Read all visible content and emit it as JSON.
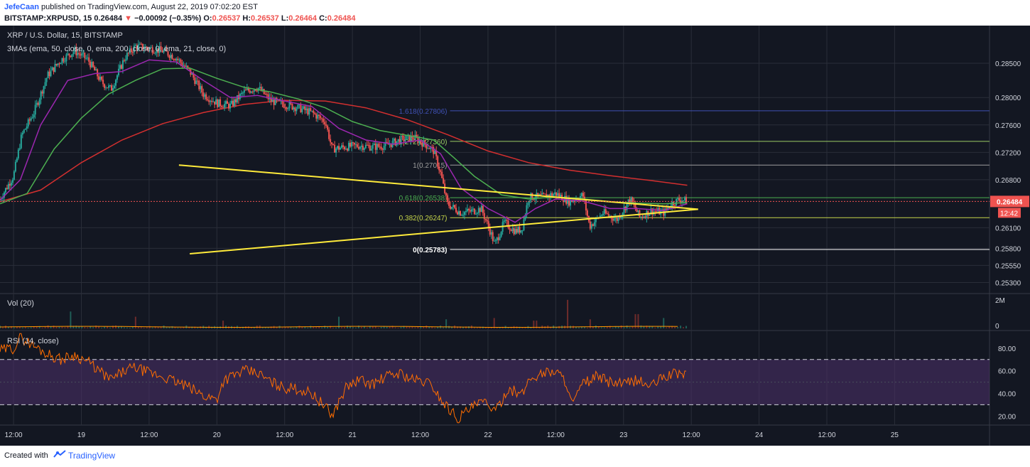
{
  "header": {
    "author": "JefeCaan",
    "published_text": "published on TradingView.com, August 22, 2019 07:02:20 EST",
    "symbol": "BITSTAMP:XRPUSD, 15",
    "last": "0.26484",
    "change": "−0.00092 (−0.35%)",
    "o_label": "O:",
    "o_value": "0.26537",
    "h_label": "H:",
    "h_value": "0.26537",
    "l_label": "L:",
    "l_value": "0.26464",
    "c_label": "C:",
    "c_value": "0.26484"
  },
  "footer": {
    "created_with": "Created with",
    "brand": "TradingView"
  },
  "chart_data": {
    "type": "candlestick",
    "title": "XRP / U.S. Dollar, 15, BITSTAMP",
    "indicator_label": "3MAs (ema, 50, close, 0, ema, 200, close, 0, ema, 21, close, 0)",
    "price_axis": {
      "ylim": [
        0.2515,
        0.2905
      ],
      "ticks": [
        "0.28500",
        "0.28000",
        "0.27600",
        "0.27200",
        "0.26800",
        "0.26100",
        "0.25800",
        "0.25550",
        "0.25300"
      ]
    },
    "current_price": "0.26484",
    "countdown": "12:42",
    "x_axis": {
      "xlim": [
        -0.1,
        7.2
      ],
      "ticks": [
        "12:00",
        "19",
        "12:00",
        "20",
        "12:00",
        "21",
        "12:00",
        "22",
        "12:00",
        "23",
        "12:00",
        "24",
        "12:00",
        "25"
      ]
    },
    "fib_levels": [
      {
        "label": "1.618(0.27806)",
        "value": 0.27806,
        "color": "#3f51b5"
      },
      {
        "label": "1.272(0.27360)",
        "value": 0.2736,
        "color": "#9ccc65"
      },
      {
        "label": "1(0.27015)",
        "value": 0.27015,
        "color": "#9e9e9e"
      },
      {
        "label": "0.618(0.26538)",
        "value": 0.26538,
        "color": "#4caf50"
      },
      {
        "label": "0.382(0.26247)",
        "value": 0.26247,
        "color": "#c6d64a"
      },
      {
        "label": "0(0.25783)",
        "value": 0.25783,
        "color": "#ffffff"
      }
    ],
    "triangle": {
      "color": "#ffeb3b",
      "upper": [
        [
          1.22,
          0.27015
        ],
        [
          5.05,
          0.2637
        ]
      ],
      "lower": [
        [
          1.3,
          0.2572
        ],
        [
          5.05,
          0.2637
        ]
      ]
    },
    "price_path": [
      [
        -0.1,
        0.2652
      ],
      [
        0.0,
        0.2686
      ],
      [
        0.06,
        0.2745
      ],
      [
        0.15,
        0.2778
      ],
      [
        0.25,
        0.2832
      ],
      [
        0.35,
        0.2855
      ],
      [
        0.45,
        0.2868
      ],
      [
        0.55,
        0.2855
      ],
      [
        0.65,
        0.2822
      ],
      [
        0.72,
        0.2812
      ],
      [
        0.82,
        0.2858
      ],
      [
        0.9,
        0.2875
      ],
      [
        1.0,
        0.2872
      ],
      [
        1.1,
        0.2868
      ],
      [
        1.2,
        0.2858
      ],
      [
        1.3,
        0.2838
      ],
      [
        1.4,
        0.2805
      ],
      [
        1.5,
        0.2792
      ],
      [
        1.6,
        0.2788
      ],
      [
        1.7,
        0.2808
      ],
      [
        1.8,
        0.2815
      ],
      [
        1.9,
        0.2795
      ],
      [
        2.0,
        0.279
      ],
      [
        2.1,
        0.2785
      ],
      [
        2.2,
        0.2778
      ],
      [
        2.3,
        0.2765
      ],
      [
        2.35,
        0.2725
      ],
      [
        2.45,
        0.2728
      ],
      [
        2.55,
        0.273
      ],
      [
        2.65,
        0.2728
      ],
      [
        2.75,
        0.273
      ],
      [
        2.85,
        0.2738
      ],
      [
        2.95,
        0.2742
      ],
      [
        3.05,
        0.273
      ],
      [
        3.1,
        0.2722
      ],
      [
        3.15,
        0.269
      ],
      [
        3.2,
        0.2645
      ],
      [
        3.3,
        0.2632
      ],
      [
        3.4,
        0.2635
      ],
      [
        3.45,
        0.2638
      ],
      [
        3.52,
        0.2603
      ],
      [
        3.55,
        0.2585
      ],
      [
        3.62,
        0.2618
      ],
      [
        3.7,
        0.2605
      ],
      [
        3.75,
        0.2608
      ],
      [
        3.8,
        0.2655
      ],
      [
        3.9,
        0.2655
      ],
      [
        4.0,
        0.266
      ],
      [
        4.1,
        0.2648
      ],
      [
        4.2,
        0.2658
      ],
      [
        4.25,
        0.2612
      ],
      [
        4.35,
        0.2632
      ],
      [
        4.45,
        0.2622
      ],
      [
        4.55,
        0.2652
      ],
      [
        4.62,
        0.2625
      ],
      [
        4.7,
        0.2635
      ],
      [
        4.8,
        0.2632
      ],
      [
        4.85,
        0.2645
      ],
      [
        4.92,
        0.2652
      ],
      [
        4.97,
        0.2648
      ]
    ],
    "ema21": [
      [
        -0.1,
        0.265
      ],
      [
        0.05,
        0.268
      ],
      [
        0.2,
        0.276
      ],
      [
        0.4,
        0.2825
      ],
      [
        0.6,
        0.2835
      ],
      [
        0.8,
        0.2838
      ],
      [
        1.0,
        0.2855
      ],
      [
        1.2,
        0.2852
      ],
      [
        1.4,
        0.2825
      ],
      [
        1.6,
        0.28
      ],
      [
        1.8,
        0.2803
      ],
      [
        2.0,
        0.2795
      ],
      [
        2.2,
        0.2787
      ],
      [
        2.4,
        0.2755
      ],
      [
        2.6,
        0.2738
      ],
      [
        2.8,
        0.2732
      ],
      [
        3.0,
        0.2738
      ],
      [
        3.15,
        0.2718
      ],
      [
        3.3,
        0.2668
      ],
      [
        3.5,
        0.2638
      ],
      [
        3.7,
        0.2618
      ],
      [
        3.85,
        0.2638
      ],
      [
        4.0,
        0.2652
      ],
      [
        4.2,
        0.2649
      ],
      [
        4.4,
        0.2638
      ],
      [
        4.6,
        0.2638
      ],
      [
        4.8,
        0.2635
      ],
      [
        4.97,
        0.2645
      ]
    ],
    "ema50": [
      [
        -0.1,
        0.2645
      ],
      [
        0.1,
        0.266
      ],
      [
        0.3,
        0.2725
      ],
      [
        0.5,
        0.277
      ],
      [
        0.7,
        0.2805
      ],
      [
        0.9,
        0.2825
      ],
      [
        1.1,
        0.2842
      ],
      [
        1.3,
        0.2843
      ],
      [
        1.5,
        0.2828
      ],
      [
        1.7,
        0.2815
      ],
      [
        1.9,
        0.2808
      ],
      [
        2.1,
        0.2798
      ],
      [
        2.3,
        0.2785
      ],
      [
        2.5,
        0.2765
      ],
      [
        2.7,
        0.2752
      ],
      [
        2.9,
        0.2745
      ],
      [
        3.1,
        0.2738
      ],
      [
        3.25,
        0.2712
      ],
      [
        3.4,
        0.2685
      ],
      [
        3.6,
        0.2658
      ],
      [
        3.8,
        0.2652
      ],
      [
        4.0,
        0.2655
      ],
      [
        4.2,
        0.2652
      ],
      [
        4.4,
        0.2648
      ],
      [
        4.6,
        0.2646
      ],
      [
        4.8,
        0.2645
      ],
      [
        4.97,
        0.2647
      ]
    ],
    "ema200": [
      [
        -0.1,
        0.2648
      ],
      [
        0.2,
        0.2665
      ],
      [
        0.5,
        0.2705
      ],
      [
        0.8,
        0.2738
      ],
      [
        1.1,
        0.2762
      ],
      [
        1.4,
        0.2778
      ],
      [
        1.7,
        0.279
      ],
      [
        2.0,
        0.2796
      ],
      [
        2.3,
        0.2795
      ],
      [
        2.6,
        0.2785
      ],
      [
        2.9,
        0.2768
      ],
      [
        3.2,
        0.2746
      ],
      [
        3.5,
        0.2722
      ],
      [
        3.8,
        0.2705
      ],
      [
        4.1,
        0.2694
      ],
      [
        4.4,
        0.2686
      ],
      [
        4.7,
        0.2679
      ],
      [
        4.97,
        0.2672
      ]
    ],
    "volume": {
      "label": "Vol (20)",
      "axis_ticks": [
        "2M",
        "0"
      ],
      "spikes": [
        [
          0.42,
          1.3
        ],
        [
          0.9,
          0.9
        ],
        [
          1.55,
          0.6
        ],
        [
          2.4,
          0.9
        ],
        [
          3.2,
          0.7
        ],
        [
          3.55,
          0.8
        ],
        [
          3.85,
          0.6
        ],
        [
          4.08,
          2.2
        ],
        [
          4.25,
          0.7
        ],
        [
          4.6,
          1.1
        ],
        [
          4.8,
          0.8
        ]
      ]
    },
    "rsi": {
      "label": "RSI (14, close)",
      "ylim": [
        12,
        95
      ],
      "axis_ticks": [
        "80.00",
        "60.00",
        "40.00",
        "20.00"
      ],
      "overbought": 70,
      "oversold": 30,
      "midline": 50,
      "values": [
        [
          -0.1,
          78
        ],
        [
          0.0,
          80
        ],
        [
          0.05,
          90
        ],
        [
          0.15,
          82
        ],
        [
          0.25,
          75
        ],
        [
          0.35,
          70
        ],
        [
          0.45,
          74
        ],
        [
          0.55,
          68
        ],
        [
          0.65,
          58
        ],
        [
          0.72,
          52
        ],
        [
          0.82,
          60
        ],
        [
          0.9,
          63
        ],
        [
          1.0,
          58
        ],
        [
          1.1,
          55
        ],
        [
          1.2,
          50
        ],
        [
          1.3,
          45
        ],
        [
          1.4,
          38
        ],
        [
          1.5,
          35
        ],
        [
          1.55,
          52
        ],
        [
          1.7,
          60
        ],
        [
          1.8,
          58
        ],
        [
          1.9,
          50
        ],
        [
          2.0,
          45
        ],
        [
          2.1,
          44
        ],
        [
          2.2,
          40
        ],
        [
          2.3,
          28
        ],
        [
          2.35,
          20
        ],
        [
          2.45,
          45
        ],
        [
          2.55,
          52
        ],
        [
          2.65,
          48
        ],
        [
          2.75,
          55
        ],
        [
          2.85,
          58
        ],
        [
          2.95,
          52
        ],
        [
          3.05,
          50
        ],
        [
          3.1,
          45
        ],
        [
          3.15,
          35
        ],
        [
          3.2,
          28
        ],
        [
          3.28,
          18
        ],
        [
          3.35,
          25
        ],
        [
          3.45,
          32
        ],
        [
          3.52,
          30
        ],
        [
          3.55,
          22
        ],
        [
          3.65,
          45
        ],
        [
          3.75,
          38
        ],
        [
          3.8,
          52
        ],
        [
          3.9,
          58
        ],
        [
          4.0,
          60
        ],
        [
          4.08,
          50
        ],
        [
          4.12,
          30
        ],
        [
          4.2,
          48
        ],
        [
          4.3,
          55
        ],
        [
          4.4,
          50
        ],
        [
          4.5,
          48
        ],
        [
          4.6,
          52
        ],
        [
          4.7,
          46
        ],
        [
          4.8,
          55
        ],
        [
          4.9,
          58
        ],
        [
          4.97,
          57
        ]
      ]
    },
    "colors": {
      "background": "#131722",
      "grid": "#2a2e39",
      "up": "#26a69a",
      "down": "#ef5350",
      "ema21": "#9c27b0",
      "ema50": "#4caf50",
      "ema200": "#d32f2f",
      "rsi_line": "#ff6d00",
      "rsi_band": "#4a2f66",
      "volume_ma": "#ff9800"
    },
    "grid": true
  }
}
